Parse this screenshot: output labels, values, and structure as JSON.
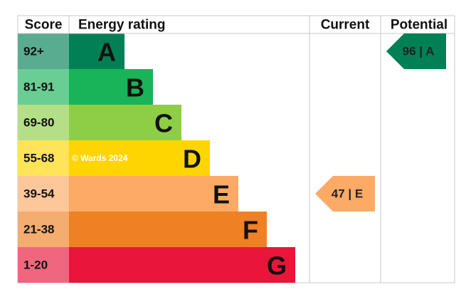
{
  "header": {
    "score": "Score",
    "rating": "Energy rating",
    "current": "Current",
    "potential": "Potential"
  },
  "bands": [
    {
      "score": "92+",
      "letter": "A",
      "color": "#008054"
    },
    {
      "score": "81-91",
      "letter": "B",
      "color": "#19b459"
    },
    {
      "score": "69-80",
      "letter": "C",
      "color": "#8dce46"
    },
    {
      "score": "55-68",
      "letter": "D",
      "color": "#ffd500"
    },
    {
      "score": "39-54",
      "letter": "E",
      "color": "#fcaa65"
    },
    {
      "score": "21-38",
      "letter": "F",
      "color": "#ef8023"
    },
    {
      "score": "1-20",
      "letter": "G",
      "color": "#e9153b"
    }
  ],
  "watermark": "© Wards 2024",
  "current": {
    "label": "47 | E",
    "color": "#fcaa65"
  },
  "potential": {
    "label": "96 | A",
    "color": "#008054"
  }
}
